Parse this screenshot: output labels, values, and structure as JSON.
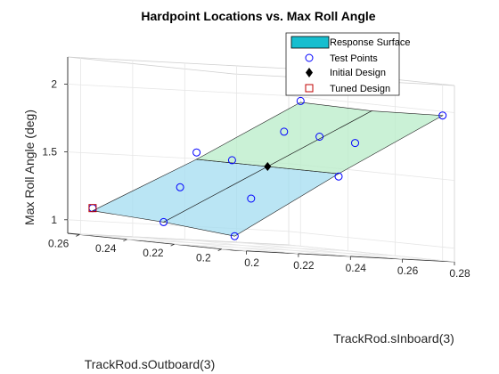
{
  "chart_data": {
    "type": "surface3d",
    "title": "Hardpoint Locations vs. Max Roll Angle",
    "xlabel": "TrackRod.sInboard(3)",
    "ylabel": "TrackRod.sOutboard(3)",
    "zlabel": "Max Roll Angle (deg)",
    "xlim": [
      0.195,
      0.28
    ],
    "ylim": [
      0.195,
      0.265
    ],
    "zlim": [
      0.9,
      2.2
    ],
    "x_ticks": [
      "0.2",
      "0.22",
      "0.24",
      "0.26",
      "0.28"
    ],
    "y_ticks": [
      "0.2",
      "0.22",
      "0.24",
      "0.26"
    ],
    "z_ticks": [
      "1",
      "1.5",
      "2"
    ],
    "grid": true,
    "legend_position": "top-right",
    "legend": [
      {
        "label": "Response Surface",
        "marker": "patch"
      },
      {
        "label": "Test Points",
        "marker": "circle"
      },
      {
        "label": "Initial Design",
        "marker": "diamond"
      },
      {
        "label": "Tuned Design",
        "marker": "square"
      }
    ],
    "surface": {
      "x": [
        0.2,
        0.24,
        0.28
      ],
      "y": [
        0.2,
        0.23,
        0.26
      ],
      "z": [
        [
          1.0,
          1.5,
          1.97
        ],
        [
          1.05,
          1.5,
          1.95
        ],
        [
          1.08,
          1.5,
          1.96
        ]
      ]
    },
    "test_points": [
      {
        "x": 0.2,
        "y": 0.2,
        "z": 1.0
      },
      {
        "x": 0.24,
        "y": 0.2,
        "z": 1.48
      },
      {
        "x": 0.28,
        "y": 0.2,
        "z": 1.97
      },
      {
        "x": 0.2,
        "y": 0.23,
        "z": 1.05
      },
      {
        "x": 0.26,
        "y": 0.23,
        "z": 1.74
      },
      {
        "x": 0.2,
        "y": 0.26,
        "z": 1.1
      },
      {
        "x": 0.24,
        "y": 0.26,
        "z": 1.55
      },
      {
        "x": 0.28,
        "y": 0.26,
        "z": 1.97
      },
      {
        "x": 0.22,
        "y": 0.215,
        "z": 1.27
      },
      {
        "x": 0.26,
        "y": 0.215,
        "z": 1.72
      },
      {
        "x": 0.22,
        "y": 0.245,
        "z": 1.3
      },
      {
        "x": 0.24,
        "y": 0.245,
        "z": 1.52
      },
      {
        "x": 0.26,
        "y": 0.245,
        "z": 1.75
      }
    ],
    "initial_design": {
      "x": 0.24,
      "y": 0.23,
      "z": 1.5
    },
    "tuned_design": {
      "x": 0.2,
      "y": 0.26,
      "z": 1.1
    },
    "colors": {
      "surface_edge": "#1a1a1a",
      "test_point": "#0000ff",
      "initial": "#000000",
      "tuned": "#c00000",
      "legend_patch": "#17becf",
      "colormap": [
        "#b3b3ff",
        "#a3dcf0",
        "#b8ecc8",
        "#ffe9a8"
      ]
    }
  }
}
